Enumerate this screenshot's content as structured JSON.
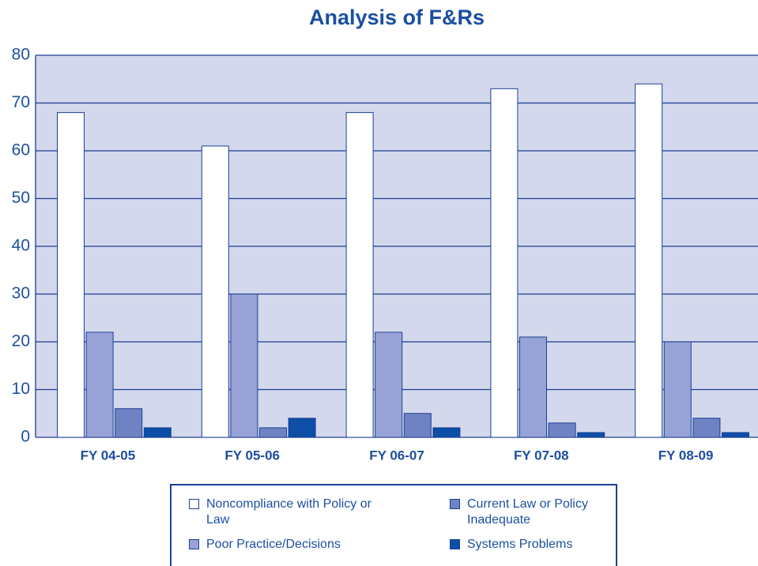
{
  "chart_data": {
    "type": "bar",
    "title": "Analysis of F&Rs",
    "categories": [
      "FY 04-05",
      "FY 05-06",
      "FY 06-07",
      "FY 07-08",
      "FY 08-09"
    ],
    "series": [
      {
        "name": "Noncompliance with Policy or Law",
        "color": "#ffffff",
        "values": [
          68,
          61,
          68,
          73,
          74
        ]
      },
      {
        "name": "Poor Practice/Decisions",
        "color": "#97a3d6",
        "values": [
          22,
          30,
          22,
          21,
          20
        ]
      },
      {
        "name": "Current Law or Policy Inadequate",
        "color": "#6f83c4",
        "values": [
          6,
          2,
          5,
          3,
          4
        ]
      },
      {
        "name": "Systems Problems",
        "color": "#0d4ea6",
        "values": [
          2,
          4,
          2,
          1,
          1
        ]
      }
    ],
    "ylim": [
      0,
      80
    ],
    "yticks": [
      0,
      10,
      20,
      30,
      40,
      50,
      60,
      70,
      80
    ],
    "grid": true
  }
}
